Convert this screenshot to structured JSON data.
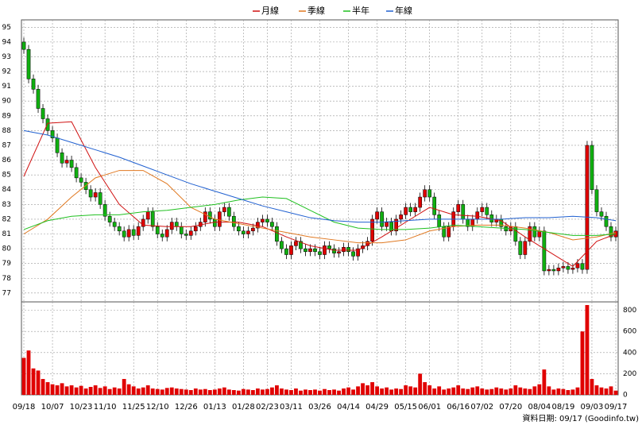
{
  "chart_data": {
    "type": "candlestick",
    "series": [
      {
        "name": "月線",
        "color": "#d01010",
        "x": [
          0,
          5,
          10,
          15,
          20,
          25,
          30,
          35,
          40,
          45,
          50,
          55,
          60,
          65,
          70,
          75,
          80,
          85,
          90,
          95,
          100,
          105,
          110,
          115,
          120,
          124
        ],
        "values": [
          84.9,
          88.5,
          88.6,
          85.5,
          83,
          81.6,
          81.5,
          81.5,
          81.8,
          81.8,
          81.5,
          80.8,
          80.2,
          79.9,
          79.9,
          80.8,
          81.8,
          82.8,
          82.3,
          82.2,
          81.9,
          80.8,
          79.8,
          78.8,
          80.5,
          81
        ]
      },
      {
        "name": "季線",
        "color": "#e07820",
        "x": [
          0,
          5,
          10,
          15,
          20,
          25,
          30,
          35,
          40,
          45,
          50,
          55,
          60,
          65,
          70,
          75,
          80,
          85,
          90,
          95,
          100,
          105,
          110,
          115,
          120,
          124
        ],
        "values": [
          81,
          82,
          83.5,
          84.8,
          85.3,
          85.3,
          84.4,
          82.8,
          82,
          81.7,
          81.4,
          81.1,
          80.8,
          80.6,
          80.4,
          80.4,
          80.6,
          81.2,
          81.5,
          81.6,
          81.6,
          81.4,
          81.1,
          80.6,
          80.8,
          81.1
        ]
      },
      {
        "name": "半年",
        "color": "#20c020",
        "x": [
          0,
          5,
          10,
          15,
          20,
          25,
          30,
          35,
          40,
          45,
          50,
          55,
          60,
          65,
          70,
          75,
          80,
          85,
          90,
          95,
          100,
          105,
          110,
          115,
          120,
          124
        ],
        "values": [
          81.3,
          81.9,
          82.2,
          82.3,
          82.3,
          82.5,
          82.6,
          82.8,
          83,
          83.3,
          83.5,
          83.4,
          82.6,
          81.8,
          81.4,
          81.3,
          81.3,
          81.4,
          81.6,
          81.5,
          81.4,
          81.3,
          81.1,
          80.9,
          80.9,
          81
        ]
      },
      {
        "name": "年線",
        "color": "#2060d0",
        "x": [
          0,
          5,
          10,
          15,
          20,
          25,
          30,
          35,
          40,
          45,
          50,
          55,
          60,
          65,
          70,
          75,
          80,
          85,
          90,
          95,
          100,
          105,
          110,
          115,
          120,
          124
        ],
        "values": [
          88,
          87.7,
          87.2,
          86.7,
          86.2,
          85.6,
          85,
          84.4,
          83.9,
          83.4,
          82.9,
          82.5,
          82.1,
          81.9,
          81.8,
          81.8,
          81.9,
          82,
          82,
          82,
          82,
          82.1,
          82.1,
          82.2,
          82.1,
          81.9
        ]
      }
    ],
    "up_color": "#e00000",
    "down_color": "#10b010",
    "open": [
      94,
      93.5,
      91.5,
      90.8,
      89.5,
      88.8,
      88,
      87.5,
      86.5,
      85.8,
      86,
      85.5,
      84.8,
      84.5,
      84,
      83.5,
      83.8,
      83,
      82.2,
      81.8,
      81.5,
      81.2,
      80.8,
      81.3,
      80.9,
      81.5,
      82,
      82.5,
      81.5,
      81,
      80.8,
      81.3,
      81.8,
      81.5,
      81,
      80.9,
      81.2,
      81.5,
      81.8,
      82.5,
      82,
      81.5,
      82.5,
      82.8,
      82.2,
      81.5,
      81.2,
      81,
      81.2,
      81.4,
      81.8,
      82,
      81.8,
      81.5,
      80.5,
      80,
      79.6,
      80.2,
      80.5,
      80,
      79.8,
      80,
      79.8,
      79.6,
      80.2,
      80,
      79.7,
      79.8,
      80.1,
      79.8,
      79.5,
      80,
      80.2,
      80.5,
      82,
      82.5,
      81.5,
      81.8,
      81.2,
      82,
      82.3,
      82.8,
      82.5,
      82.8,
      83.5,
      84,
      83.5,
      82.3,
      81.5,
      80.8,
      81.5,
      82.5,
      83,
      82,
      81.5,
      82,
      82.5,
      82.8,
      82.3,
      81.8,
      82,
      81.5,
      81.2,
      81.5,
      80.5,
      79.6,
      80.5,
      81.5,
      80.8,
      81.2,
      78.5,
      78.6,
      78.5,
      78.7,
      78.8,
      78.6,
      78.7,
      79,
      78.6,
      87,
      84,
      82.5,
      82.2,
      81.5,
      80.8
    ],
    "high": [
      94.3,
      93.8,
      91.8,
      91.1,
      89.8,
      89.1,
      88.3,
      87.8,
      86.8,
      86.3,
      86.3,
      85.8,
      85.1,
      84.8,
      84.3,
      84.1,
      84.1,
      83.3,
      82.5,
      82.1,
      81.8,
      81.5,
      81.6,
      81.6,
      81.8,
      82.3,
      82.8,
      82.8,
      81.8,
      81.3,
      81.6,
      82.1,
      82.1,
      81.8,
      81.3,
      81.5,
      81.8,
      82.1,
      82.8,
      82.8,
      82.3,
      82.8,
      83.1,
      83.1,
      82.5,
      81.8,
      81.5,
      81.5,
      81.7,
      82.1,
      82.3,
      82.3,
      82.1,
      81.8,
      80.8,
      80.3,
      80.5,
      80.8,
      80.8,
      80.3,
      80.3,
      80.3,
      80.1,
      80.5,
      80.5,
      80.3,
      80.1,
      80.4,
      80.4,
      80.1,
      80.3,
      80.5,
      80.8,
      82.3,
      82.8,
      82.8,
      82.1,
      82.1,
      82.3,
      82.6,
      83.1,
      83.1,
      83.1,
      83.8,
      84.3,
      84.3,
      83.8,
      82.6,
      81.8,
      81.8,
      82.8,
      83.3,
      83.3,
      82.3,
      82.3,
      82.8,
      83.1,
      83.1,
      82.6,
      82.3,
      82.3,
      81.8,
      81.8,
      81.8,
      80.8,
      80.8,
      81.8,
      81.8,
      81.5,
      81.5,
      78.9,
      78.9,
      79,
      79.1,
      79.1,
      79,
      79.3,
      79.3,
      87.3,
      87.3,
      84.3,
      82.8,
      82.5,
      81.8,
      81.5
    ],
    "low": [
      93.2,
      91.2,
      90.5,
      89.2,
      88.5,
      87.7,
      87.2,
      86.2,
      85.5,
      85.5,
      85.2,
      84.5,
      84.2,
      83.7,
      83.2,
      83.2,
      82.7,
      81.9,
      81.5,
      81.2,
      80.9,
      80.5,
      80.5,
      80.6,
      80.6,
      81.2,
      81.7,
      81.2,
      80.7,
      80.5,
      80.5,
      81,
      81.2,
      80.7,
      80.6,
      80.6,
      80.9,
      81.2,
      81.5,
      81.7,
      81.2,
      81.2,
      82.2,
      81.9,
      81.2,
      80.9,
      80.7,
      80.7,
      80.9,
      81.1,
      81.5,
      81.5,
      81.2,
      80.2,
      79.7,
      79.3,
      79.3,
      79.9,
      79.7,
      79.5,
      79.5,
      79.5,
      79.3,
      79.3,
      79.7,
      79.4,
      79.4,
      79.5,
      79.5,
      79.2,
      79.2,
      79.7,
      79.9,
      80.2,
      81.7,
      81.2,
      81.2,
      80.9,
      80.9,
      81.7,
      82,
      82.2,
      82.2,
      82.5,
      83.2,
      83.2,
      82,
      81.2,
      80.5,
      80.5,
      81.2,
      82.2,
      81.7,
      81.2,
      81.2,
      81.7,
      82.2,
      82,
      81.5,
      81.5,
      81.2,
      80.9,
      80.9,
      80.2,
      79.3,
      79.3,
      80.2,
      80.5,
      80.5,
      78.2,
      78.2,
      78.2,
      78.2,
      78.4,
      78.3,
      78.3,
      78.4,
      78.3,
      78.3,
      83.7,
      82.2,
      81.9,
      81.2,
      80.5,
      80.5
    ],
    "close": [
      93.5,
      91.5,
      90.8,
      89.5,
      88.8,
      88,
      87.5,
      86.5,
      85.8,
      86,
      85.5,
      84.8,
      84.5,
      84,
      83.5,
      83.8,
      83,
      82.2,
      81.8,
      81.5,
      81.2,
      80.8,
      81.3,
      80.9,
      81.5,
      82,
      82.5,
      81.5,
      81,
      80.8,
      81.3,
      81.8,
      81.5,
      81,
      80.9,
      81.2,
      81.5,
      81.8,
      82.5,
      82,
      81.5,
      82.5,
      82.8,
      82.2,
      81.5,
      81.2,
      81,
      81.2,
      81.4,
      81.8,
      82,
      81.8,
      81.5,
      80.5,
      80,
      79.6,
      80.2,
      80.5,
      80,
      79.8,
      80,
      79.8,
      79.6,
      80.2,
      80,
      79.7,
      79.8,
      80.1,
      79.8,
      79.5,
      80,
      80.2,
      80.5,
      82,
      82.5,
      81.5,
      81.8,
      81.2,
      82,
      82.3,
      82.8,
      82.5,
      82.8,
      83.5,
      84,
      83.5,
      82.3,
      81.5,
      80.8,
      81.5,
      82.5,
      83,
      82,
      81.5,
      82,
      82.5,
      82.8,
      82.3,
      81.8,
      82,
      81.5,
      81.2,
      81.5,
      80.5,
      79.6,
      80.5,
      81.5,
      80.8,
      81.2,
      78.5,
      78.6,
      78.5,
      78.7,
      78.8,
      78.6,
      78.7,
      79,
      78.6,
      87,
      84,
      82.5,
      82.2,
      81.5,
      80.8,
      81.2
    ],
    "xticks": [
      {
        "value": 0,
        "label": "09/18"
      },
      {
        "value": 6,
        "label": "10/07"
      },
      {
        "value": 12,
        "label": "10/23"
      },
      {
        "value": 17,
        "label": "11/10"
      },
      {
        "value": 23,
        "label": "11/25"
      },
      {
        "value": 28,
        "label": "12/10"
      },
      {
        "value": 34,
        "label": "12/26"
      },
      {
        "value": 40,
        "label": "01/13"
      },
      {
        "value": 46,
        "label": "01/28"
      },
      {
        "value": 51,
        "label": "02/23"
      },
      {
        "value": 56,
        "label": "03/11"
      },
      {
        "value": 62,
        "label": "03/26"
      },
      {
        "value": 68,
        "label": "04/14"
      },
      {
        "value": 74,
        "label": "04/29"
      },
      {
        "value": 80,
        "label": "05/15"
      },
      {
        "value": 85,
        "label": "06/01"
      },
      {
        "value": 91,
        "label": "06/16"
      },
      {
        "value": 96,
        "label": "07/02"
      },
      {
        "value": 102,
        "label": "07/20"
      },
      {
        "value": 108,
        "label": "08/04"
      },
      {
        "value": 113,
        "label": "08/19"
      },
      {
        "value": 119,
        "label": "09/03"
      },
      {
        "value": 124,
        "label": "09/17"
      }
    ],
    "xlim": [
      -0.5,
      124.5
    ],
    "ylim": [
      76.4,
      95.5
    ],
    "yticks": [
      77,
      78,
      79,
      80,
      81,
      82,
      83,
      84,
      85,
      86,
      87,
      88,
      89,
      90,
      91,
      92,
      93,
      94,
      95
    ],
    "volume": {
      "color": "#e00000",
      "ylim": [
        0,
        880
      ],
      "yticks": [
        0,
        200,
        400,
        600,
        800
      ],
      "values": [
        350,
        420,
        250,
        230,
        150,
        120,
        100,
        90,
        110,
        80,
        90,
        70,
        85,
        60,
        75,
        90,
        65,
        80,
        55,
        70,
        60,
        150,
        100,
        80,
        60,
        70,
        90,
        60,
        55,
        50,
        65,
        70,
        60,
        55,
        50,
        45,
        60,
        50,
        55,
        45,
        50,
        60,
        70,
        50,
        45,
        40,
        55,
        50,
        45,
        60,
        50,
        55,
        70,
        90,
        60,
        50,
        45,
        60,
        40,
        50,
        45,
        50,
        40,
        55,
        45,
        50,
        40,
        60,
        70,
        50,
        80,
        110,
        90,
        120,
        80,
        60,
        70,
        50,
        60,
        55,
        90,
        80,
        70,
        200,
        120,
        90,
        60,
        80,
        50,
        60,
        70,
        90,
        60,
        55,
        70,
        80,
        60,
        50,
        55,
        70,
        60,
        50,
        60,
        90,
        70,
        60,
        55,
        80,
        100,
        240,
        80,
        50,
        60,
        55,
        45,
        50,
        70,
        600,
        850,
        150,
        90,
        70,
        60,
        80,
        40
      ]
    },
    "grid": true,
    "footnote": "資料日期: 09/17 (Goodinfo.tw)"
  }
}
